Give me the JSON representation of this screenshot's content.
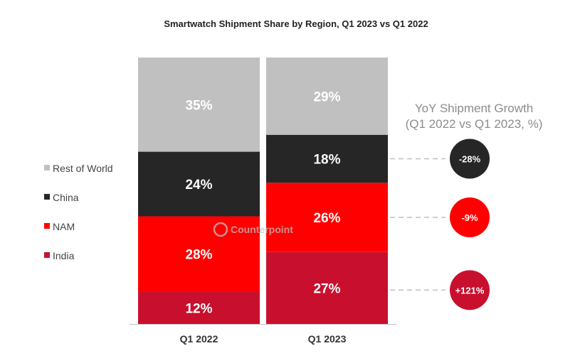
{
  "chart_data": {
    "type": "bar",
    "stacked": true,
    "title": "Smartwatch Shipment Share by Region, Q1 2023 vs Q1 2022",
    "categories": [
      "Q1 2022",
      "Q1 2023"
    ],
    "series": [
      {
        "name": "India",
        "values": [
          12,
          27
        ],
        "labels": [
          "12%",
          "27%"
        ],
        "color": "#c8102e"
      },
      {
        "name": "NAM",
        "values": [
          28,
          26
        ],
        "labels": [
          "28%",
          "26%"
        ],
        "color": "#ff0000"
      },
      {
        "name": "China",
        "values": [
          24,
          18
        ],
        "labels": [
          "24%",
          "18%"
        ],
        "color": "#262626"
      },
      {
        "name": "Rest of World",
        "values": [
          35,
          29
        ],
        "labels": [
          "35%",
          "29%"
        ],
        "color": "#c0c0c0"
      }
    ],
    "legend": {
      "placement": "left",
      "items": [
        "Rest of World",
        "China",
        "NAM",
        "India"
      ]
    },
    "growth": {
      "title_line1": "YoY Shipment Growth",
      "title_line2": "(Q1 2022 vs Q1 2023, %)",
      "items": [
        {
          "series": "China",
          "value": -28,
          "label": "-28%",
          "color": "#262626"
        },
        {
          "series": "NAM",
          "value": -9,
          "label": "-9%",
          "color": "#ff0000"
        },
        {
          "series": "India",
          "value": 121,
          "label": "+121%",
          "color": "#c8102e"
        }
      ]
    },
    "watermark": "Counterpoint",
    "ylim": [
      0,
      100
    ]
  }
}
